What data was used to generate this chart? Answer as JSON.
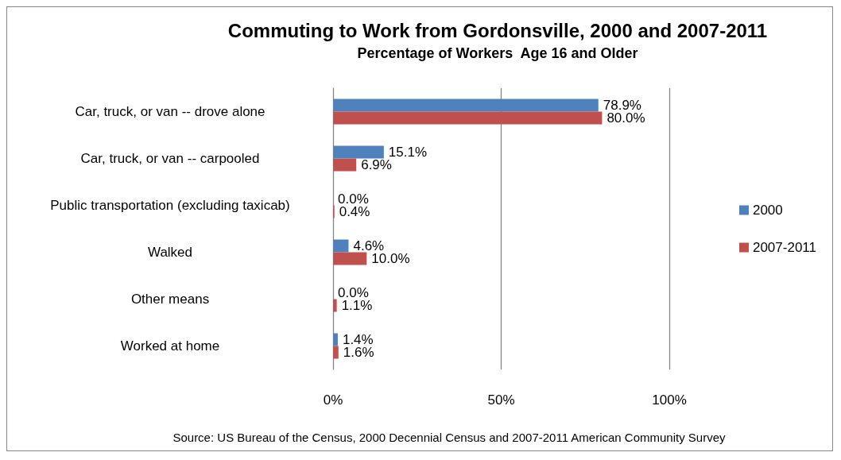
{
  "chart_data": {
    "type": "bar",
    "orientation": "horizontal",
    "title": "Commuting to Work from Gordonsville, 2000 and 2007-2011",
    "subtitle": "Percentage of Workers  Age 16 and Older",
    "categories": [
      "Car, truck, or van -- drove alone",
      "Car, truck, or van -- carpooled",
      "Public transportation (excluding taxicab)",
      "Walked",
      "Other means",
      "Worked at home"
    ],
    "series": [
      {
        "name": "2000",
        "color": "#4f81bd",
        "values": [
          78.9,
          15.1,
          0.0,
          4.6,
          0.0,
          1.4
        ],
        "value_labels": [
          "78.9%",
          "15.1%",
          "0.0%",
          "4.6%",
          "0.0%",
          "1.4%"
        ]
      },
      {
        "name": "2007-2011",
        "color": "#c0504d",
        "values": [
          80.0,
          6.9,
          0.4,
          10.0,
          1.1,
          1.6
        ],
        "value_labels": [
          "80.0%",
          "6.9%",
          "0.4%",
          "10.0%",
          "1.1%",
          "1.6%"
        ]
      }
    ],
    "xlim": [
      0,
      100
    ],
    "xticks": [
      {
        "value": 0,
        "label": "0%"
      },
      {
        "value": 50,
        "label": "50%"
      },
      {
        "value": 100,
        "label": "100%"
      }
    ],
    "grid": "x",
    "legend": "right",
    "annotations": [
      "Source: US Bureau of the Census, 2000 Decennial Census and 2007-2011 American Community Survey"
    ]
  }
}
